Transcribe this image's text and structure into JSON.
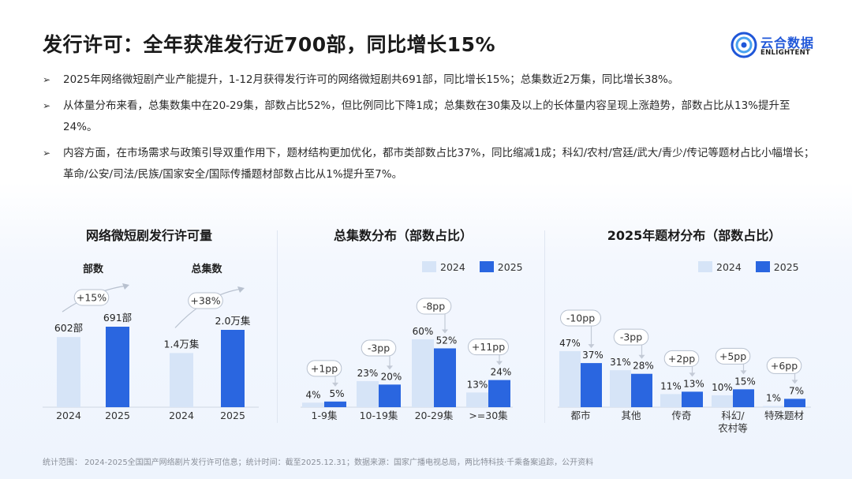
{
  "header": {
    "title": "发行许可：全年获准发行近700部，同比增长15%",
    "logo_cn": "云合数据",
    "logo_en": "ENLIGHTENT"
  },
  "bullets": [
    "2025年网络微短剧产业产能提升，1-12月获得发行许可的网络微短剧共691部，同比增长15%；总集数近2万集，同比增长38%。",
    "从体量分布来看，总集数集中在20-29集，部数占比52%，但比例同比下降1成；总集数在30集及以上的长体量内容呈现上涨趋势，部数占比从13%提升至24%。",
    "内容方面，在市场需求与政策引导双重作用下，题材结构更加优化，都市类部数占比37%，同比缩减1成；科幻/农村/宫廷/武大/青少/传记等题材占比小幅增长；革命/公安/司法/民族/国家安全/国际传播题材部数占比从1%提升至7%。"
  ],
  "colors": {
    "c2024": "#d6e4f7",
    "c2025": "#2a66e0",
    "accent": "#1f56d8"
  },
  "legend": {
    "a": "2024",
    "b": "2025"
  },
  "footer": "统计范围：  2024-2025全国国产网络剧片发行许可信息；统计时间：截至2025.12.31；数据来源：国家广播电视总局，两比特科技·千乘备案追踪，公开资料",
  "chart_data": [
    {
      "type": "bar",
      "title": "网络微短剧发行许可量",
      "subcharts": [
        {
          "label": "部数",
          "categories": [
            "2024",
            "2025"
          ],
          "values": [
            602,
            691
          ],
          "data_labels": [
            "602部",
            "691部"
          ],
          "change": "+15%"
        },
        {
          "label": "总集数",
          "categories": [
            "2024",
            "2025"
          ],
          "values": [
            1.4,
            2.0
          ],
          "data_labels": [
            "1.4万集",
            "2.0万集"
          ],
          "change": "+38%"
        }
      ]
    },
    {
      "type": "bar",
      "title": "总集数分布（部数占比）",
      "categories": [
        "1-9集",
        "10-19集",
        "20-29集",
        ">=30集"
      ],
      "series": [
        {
          "name": "2024",
          "values": [
            4,
            23,
            60,
            13
          ]
        },
        {
          "name": "2025",
          "values": [
            5,
            20,
            52,
            24
          ]
        }
      ],
      "changes": [
        "+1pp",
        "-3pp",
        "-8pp",
        "+11pp"
      ],
      "ylim": [
        0,
        60
      ]
    },
    {
      "type": "bar",
      "title": "2025年题材分布（部数占比）",
      "categories": [
        "都市",
        "其他",
        "传奇",
        "科幻/农村等",
        "特殊题材"
      ],
      "series": [
        {
          "name": "2024",
          "values": [
            47,
            31,
            11,
            10,
            1
          ]
        },
        {
          "name": "2025",
          "values": [
            37,
            28,
            13,
            15,
            7
          ]
        }
      ],
      "changes": [
        "-10pp",
        "-3pp",
        "+2pp",
        "+5pp",
        "+6pp"
      ],
      "ylim": [
        0,
        47
      ]
    }
  ]
}
